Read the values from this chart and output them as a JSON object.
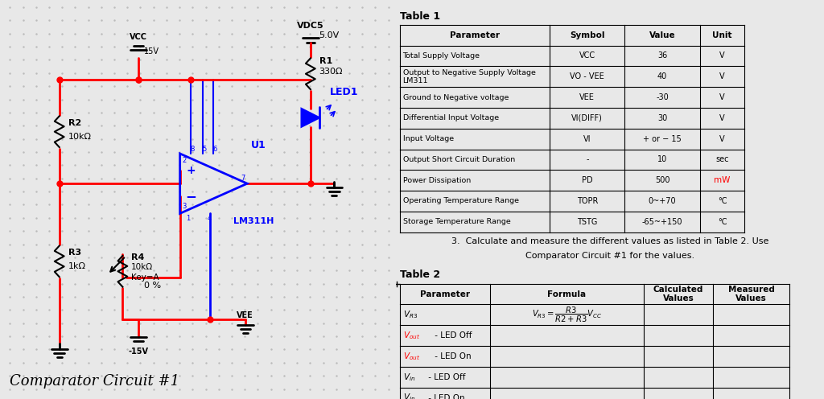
{
  "bg_color": "#e8e8e8",
  "dot_color": "#bbbbbb",
  "title": "Comparator Circuit #1",
  "table1_title": "Table 1",
  "table2_title": "Table 2",
  "table1_headers": [
    "Parameter",
    "Symbol",
    "Value",
    "Unit"
  ],
  "table1_rows": [
    [
      "Total Supply Voltage",
      "VCC",
      "36",
      "V"
    ],
    [
      "Output to Negative Supply Voltage\nLM311",
      "VO - VEE",
      "40",
      "V"
    ],
    [
      "Ground to Negative voltage",
      "VEE",
      "-30",
      "V"
    ],
    [
      "Differential Input Voltage",
      "VI(DIFF)",
      "30",
      "V"
    ],
    [
      "Input Voltage",
      "VI",
      "+ or − 15",
      "V"
    ],
    [
      "Output Short Circuit Duration",
      "-",
      "10",
      "sec"
    ],
    [
      "Power Dissipation",
      "PD",
      "500",
      "mW"
    ],
    [
      "Operating Temperature Range",
      "TOPR",
      "0~+70",
      "°C"
    ],
    [
      "Storage Temperature Range",
      "TSTG",
      "-65~+150",
      "°C"
    ]
  ],
  "note_line1": "3.  Calculate and measure the different values as listed in Table 2. Use",
  "note_line2": "Comparator Circuit #1 for the values.",
  "table2_headers": [
    "Parameter",
    "Formula",
    "Calculated\nValues",
    "Measured\nValues"
  ],
  "vcc_label": "VCC",
  "vcc_value": "15V",
  "vee_label": "VEE",
  "vee_value": "-15V",
  "vdc5_label": "VDC5",
  "vdc5_value": "5.0V",
  "r1_label": "R1",
  "r1_value": "330Ω",
  "r2_label": "R2",
  "r2_value": "10kΩ",
  "r3_label": "R3",
  "r3_value": "1kΩ",
  "r4_label": "R4",
  "r4_value": "10kΩ",
  "r4_key": "Key=A",
  "u1_label": "U1",
  "led_label": "LED1",
  "lm_label": "LM311H",
  "red": "#ff0000",
  "blue": "#0000ff",
  "black": "#000000"
}
